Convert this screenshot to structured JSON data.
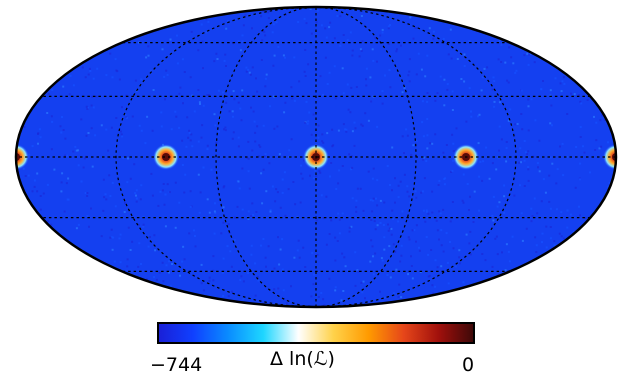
{
  "chart_data": {
    "type": "heatmap",
    "projection": "mollweide",
    "grid": true,
    "background_level": 0.12,
    "hotspots": [
      {
        "lon": 180,
        "lat": 0,
        "value": 0
      },
      {
        "lon": 90,
        "lat": 0,
        "value": 0
      },
      {
        "lon": 0,
        "lat": 0,
        "value": 0
      },
      {
        "lon": -90,
        "lat": 0,
        "value": 0
      },
      {
        "lon": -180,
        "lat": 0,
        "value": 0
      }
    ],
    "colorbar": {
      "min_label": "−744",
      "max_label": "0",
      "title": "Δ ln(ℒ)",
      "min": -744,
      "max": 0,
      "colors": [
        "#1a1fd6",
        "#1040ff",
        "#0a8cff",
        "#1ed6ff",
        "#ffffff",
        "#ffd24a",
        "#ff9a00",
        "#e6461a",
        "#a0100c",
        "#3c0808"
      ]
    }
  }
}
